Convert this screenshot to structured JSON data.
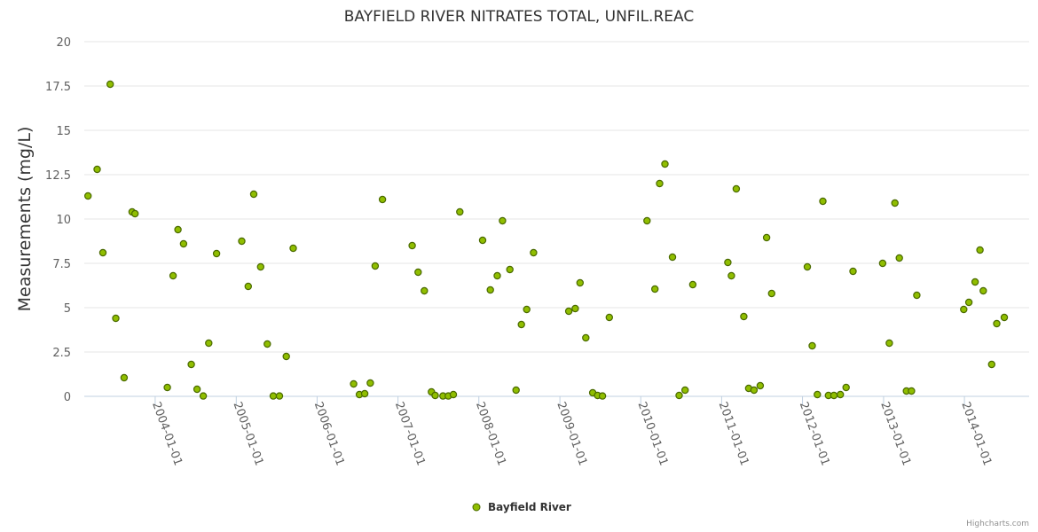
{
  "credits": "Highcharts.com",
  "chart_data": {
    "type": "scatter",
    "title": "BAYFIELD RIVER NITRATES TOTAL, UNFIL.REAC",
    "ylabel": "Measurements (mg/L)",
    "xlabel": "",
    "ylim": [
      0,
      20
    ],
    "xlim": [
      "2003-02-15",
      "2014-10-20"
    ],
    "yticks": [
      "0",
      "2.5",
      "5",
      "7.5",
      "10",
      "12.5",
      "15",
      "17.5",
      "20"
    ],
    "xticks": [
      "2004-01-01",
      "2005-01-01",
      "2006-01-01",
      "2007-01-01",
      "2008-01-01",
      "2009-01-01",
      "2010-01-01",
      "2011-01-01",
      "2012-01-01",
      "2013-01-01",
      "2014-01-01"
    ],
    "grid": true,
    "legend_position": "bottom-center",
    "marker_color": "#90be00",
    "marker_stroke": "#4a6a00",
    "series": [
      {
        "name": "Bayfield River",
        "points": [
          [
            "2003-03-04",
            11.3
          ],
          [
            "2003-04-14",
            12.8
          ],
          [
            "2003-05-10",
            8.1
          ],
          [
            "2003-06-12",
            17.6
          ],
          [
            "2003-07-07",
            4.4
          ],
          [
            "2003-08-14",
            1.05
          ],
          [
            "2003-09-19",
            10.4
          ],
          [
            "2003-10-02",
            10.3
          ],
          [
            "2004-02-25",
            0.5
          ],
          [
            "2004-03-22",
            6.8
          ],
          [
            "2004-04-13",
            9.4
          ],
          [
            "2004-05-08",
            8.6
          ],
          [
            "2004-06-12",
            1.8
          ],
          [
            "2004-07-08",
            0.4
          ],
          [
            "2004-08-05",
            0.02
          ],
          [
            "2004-08-30",
            3.0
          ],
          [
            "2004-10-04",
            8.05
          ],
          [
            "2005-01-26",
            8.75
          ],
          [
            "2005-02-24",
            6.2
          ],
          [
            "2005-03-21",
            11.4
          ],
          [
            "2005-04-21",
            7.3
          ],
          [
            "2005-05-21",
            2.95
          ],
          [
            "2005-06-17",
            0.02
          ],
          [
            "2005-07-15",
            0.02
          ],
          [
            "2005-08-15",
            2.25
          ],
          [
            "2005-09-15",
            8.35
          ],
          [
            "2006-06-15",
            0.7
          ],
          [
            "2006-07-11",
            0.1
          ],
          [
            "2006-08-04",
            0.15
          ],
          [
            "2006-08-29",
            0.75
          ],
          [
            "2006-09-20",
            7.35
          ],
          [
            "2006-10-23",
            11.1
          ],
          [
            "2007-03-06",
            8.5
          ],
          [
            "2007-04-02",
            7.0
          ],
          [
            "2007-04-30",
            5.95
          ],
          [
            "2007-06-01",
            0.25
          ],
          [
            "2007-06-18",
            0.05
          ],
          [
            "2007-07-23",
            0.02
          ],
          [
            "2007-08-16",
            0.02
          ],
          [
            "2007-09-08",
            0.1
          ],
          [
            "2007-10-07",
            10.4
          ],
          [
            "2008-01-18",
            8.8
          ],
          [
            "2008-02-22",
            6.0
          ],
          [
            "2008-03-24",
            6.8
          ],
          [
            "2008-04-17",
            9.9
          ],
          [
            "2008-05-20",
            7.15
          ],
          [
            "2008-06-17",
            0.35
          ],
          [
            "2008-07-11",
            4.05
          ],
          [
            "2008-08-04",
            4.9
          ],
          [
            "2008-09-04",
            8.1
          ],
          [
            "2009-02-10",
            4.8
          ],
          [
            "2009-03-11",
            4.95
          ],
          [
            "2009-04-02",
            6.4
          ],
          [
            "2009-04-28",
            3.3
          ],
          [
            "2009-05-29",
            0.2
          ],
          [
            "2009-06-20",
            0.05
          ],
          [
            "2009-07-12",
            0.02
          ],
          [
            "2009-08-12",
            4.45
          ],
          [
            "2010-01-29",
            9.9
          ],
          [
            "2010-03-06",
            6.05
          ],
          [
            "2010-03-27",
            12.0
          ],
          [
            "2010-04-20",
            13.1
          ],
          [
            "2010-05-24",
            7.85
          ],
          [
            "2010-06-23",
            0.05
          ],
          [
            "2010-07-20",
            0.35
          ],
          [
            "2010-08-24",
            6.3
          ],
          [
            "2011-01-29",
            7.55
          ],
          [
            "2011-02-14",
            6.8
          ],
          [
            "2011-03-08",
            11.7
          ],
          [
            "2011-04-11",
            4.5
          ],
          [
            "2011-05-03",
            0.45
          ],
          [
            "2011-05-27",
            0.35
          ],
          [
            "2011-06-24",
            0.6
          ],
          [
            "2011-07-23",
            8.95
          ],
          [
            "2011-08-15",
            5.8
          ],
          [
            "2012-01-23",
            7.3
          ],
          [
            "2012-02-14",
            2.85
          ],
          [
            "2012-03-08",
            0.1
          ],
          [
            "2012-04-02",
            11.0
          ],
          [
            "2012-04-27",
            0.05
          ],
          [
            "2012-05-22",
            0.05
          ],
          [
            "2012-06-20",
            0.1
          ],
          [
            "2012-07-16",
            0.5
          ],
          [
            "2012-08-16",
            7.05
          ],
          [
            "2012-12-28",
            7.5
          ],
          [
            "2013-01-27",
            3.0
          ],
          [
            "2013-02-21",
            10.9
          ],
          [
            "2013-03-13",
            7.8
          ],
          [
            "2013-04-14",
            0.3
          ],
          [
            "2013-05-07",
            0.3
          ],
          [
            "2013-05-31",
            5.7
          ],
          [
            "2013-12-29",
            4.9
          ],
          [
            "2014-01-21",
            5.3
          ],
          [
            "2014-02-18",
            6.45
          ],
          [
            "2014-03-12",
            8.25
          ],
          [
            "2014-03-27",
            5.95
          ],
          [
            "2014-05-04",
            1.8
          ],
          [
            "2014-05-27",
            4.1
          ],
          [
            "2014-06-30",
            4.45
          ]
        ]
      }
    ]
  }
}
